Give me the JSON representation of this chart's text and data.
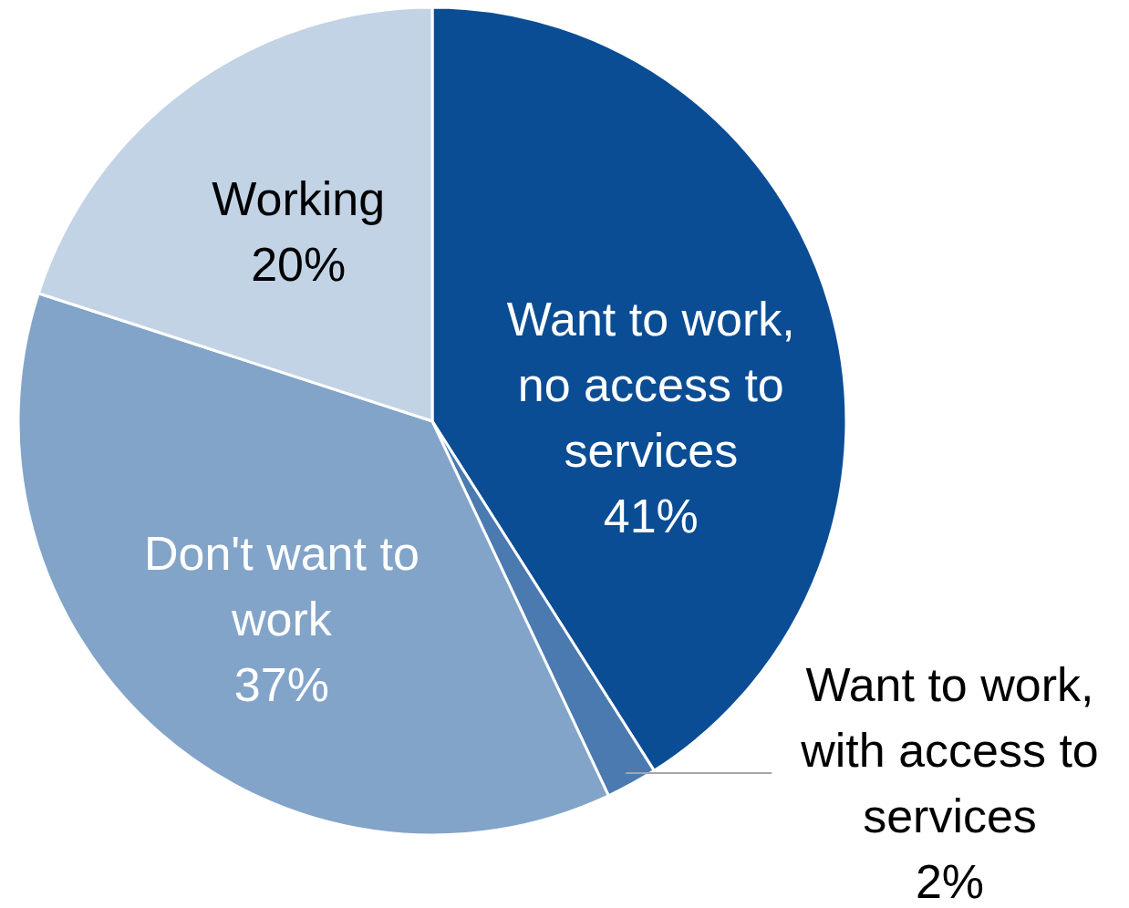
{
  "chart_data": {
    "type": "pie",
    "categories": [
      "Want to work, no access to services",
      "Want to work, with access to services",
      "Don't want to work",
      "Working"
    ],
    "values": [
      41,
      2,
      37,
      20
    ],
    "colors": [
      "#0b4d94",
      "#4a7ab0",
      "#82a4c9",
      "#c2d3e6"
    ],
    "value_labels": [
      "41%",
      "2%",
      "37%",
      "20%"
    ]
  }
}
